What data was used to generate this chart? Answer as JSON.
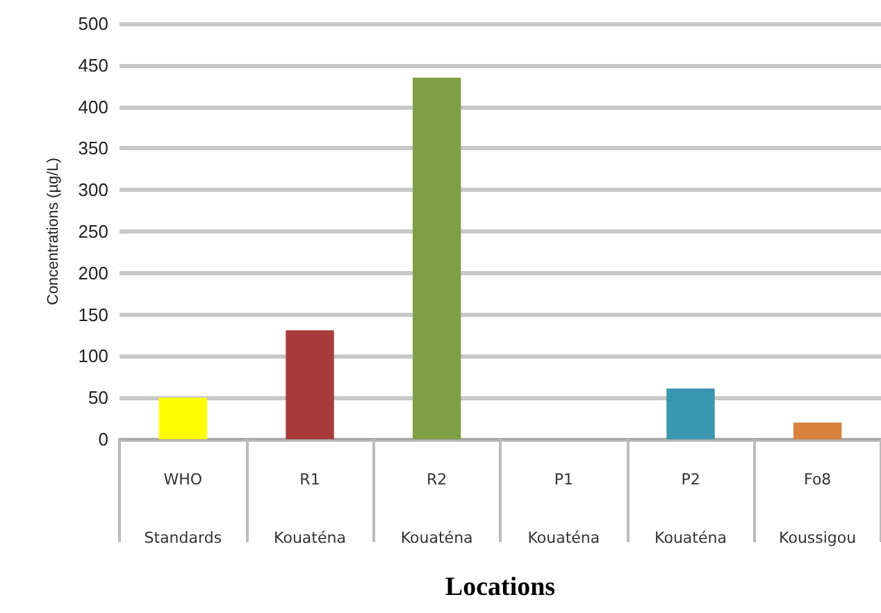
{
  "chart_data": {
    "type": "bar",
    "xlabel": "Locations",
    "ylabel": "Concentrations (µg/L)",
    "categories": [
      "WHO\nStandards",
      "R1\nKouaténa",
      "R2\nKouaténa",
      "P1\nKouaténa",
      "P2\nKouaténa",
      "Fo8\nKoussigou"
    ],
    "values": [
      50,
      131,
      435,
      0,
      61,
      20
    ],
    "colors": [
      "#ffff00",
      "#a83c3c",
      "#7f9f45",
      "#8064a2",
      "#3b96b0",
      "#d9823d"
    ],
    "ylim": [
      0,
      500
    ],
    "yticks": [
      0,
      50,
      100,
      150,
      200,
      250,
      300,
      350,
      400,
      450,
      500
    ],
    "grid": "y"
  }
}
